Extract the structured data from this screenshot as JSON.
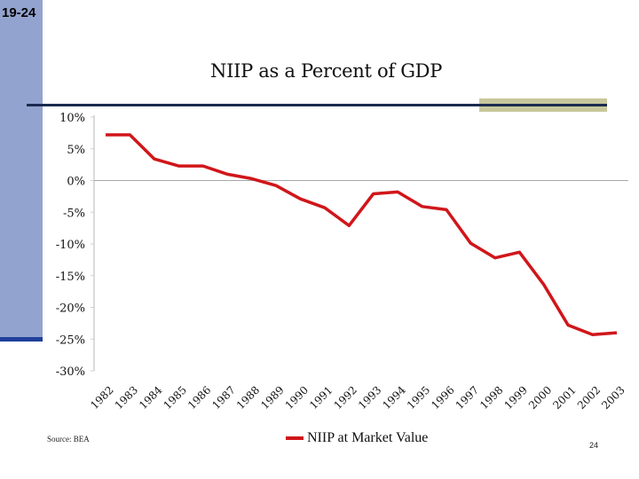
{
  "slide": {
    "slide_number": "19-24",
    "page_number": "24",
    "source": "Source: BEA",
    "colors": {
      "sidebar": "#93a3cf",
      "rule": "#1b2b4f",
      "accent": "#c8c69c",
      "line": "#d0161a"
    }
  },
  "chart_data": {
    "type": "line",
    "title": "NIIP as a Percent of GDP",
    "xlabel": "",
    "ylabel": "",
    "x": [
      "1982",
      "1983",
      "1984",
      "1985",
      "1986",
      "1987",
      "1988",
      "1989",
      "1990",
      "1991",
      "1992",
      "1993",
      "1994",
      "1995",
      "1996",
      "1997",
      "1998",
      "1999",
      "2000",
      "2001",
      "2002",
      "2003"
    ],
    "series": [
      {
        "name": "NIIP at Market Value",
        "color": "#d0161a",
        "values": [
          7.2,
          7.2,
          3.4,
          2.3,
          2.3,
          1.0,
          0.3,
          -0.8,
          -2.9,
          -4.3,
          -7.1,
          -2.1,
          -1.8,
          -4.1,
          -4.6,
          -9.9,
          -12.2,
          -11.3,
          -16.4,
          -22.8,
          -24.3,
          -24.0
        ]
      }
    ],
    "yticks": [
      10,
      5,
      0,
      -5,
      -10,
      -15,
      -20,
      -25,
      -30
    ],
    "ytick_labels": [
      "10%",
      "5%",
      "0%",
      "-5%",
      "-10%",
      "-15%",
      "-20%",
      "-25%",
      "-30%"
    ],
    "ylim": [
      -30,
      10
    ],
    "grid": false,
    "zero_line": true,
    "legend_position": "bottom"
  }
}
